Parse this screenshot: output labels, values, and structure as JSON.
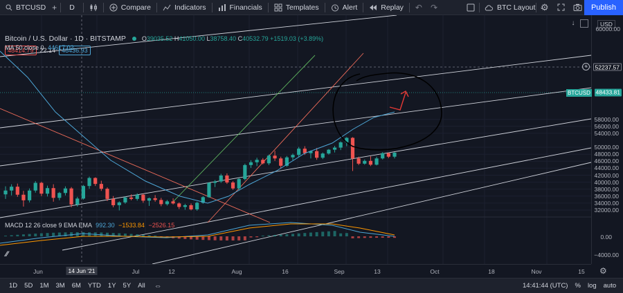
{
  "toolbar": {
    "symbol": "BTCUSD",
    "interval": "D",
    "compare": "Compare",
    "indicators": "Indicators",
    "financials": "Financials",
    "templates": "Templates",
    "alert": "Alert",
    "replay": "Replay",
    "layout_name": "BTC Layout",
    "publish": "Publish"
  },
  "legend": {
    "title": "Bitcoin / U.S. Dollar · 1D · BITSTAMP",
    "open_label": "O",
    "open": "39035.52",
    "high_label": "H",
    "high": "41050.00",
    "low_label": "L",
    "low": "38758.40",
    "close_label": "C",
    "close": "40532.79",
    "change": "+1519.03 (+3.89%)",
    "bid": "48414.79",
    "spread": "22.14",
    "ask": "48436.93",
    "ma_text": "MA 50 close 0",
    "ma_value": "44617.02"
  },
  "macd": {
    "label": "MACD 12 26 close 9 EMA EMA",
    "v1": "992.30",
    "v2": "−1533.84",
    "v3": "−2526.15"
  },
  "price_axis": {
    "currency": "USD",
    "ticks": [
      "58000.00",
      "56000.00",
      "54000.00",
      "50000.00",
      "48000.00",
      "46000.00",
      "44000.00",
      "42000.00",
      "40000.00",
      "38000.00",
      "36000.00",
      "34000.00",
      "32000.00"
    ],
    "tick_values": [
      58000,
      56000,
      54000,
      50000,
      48000,
      46000,
      44000,
      42000,
      40000,
      38000,
      36000,
      34000,
      32000
    ],
    "top_tick": "60000.00",
    "crosshair_price": "52237.57",
    "symbol_tag": "BTCUSD",
    "last_price": "48433.81",
    "macd_ticks": [
      "0.00",
      "−4000.00"
    ]
  },
  "time_axis": {
    "labels": [
      "Jun",
      "14 Jun '21",
      "Jul",
      "12",
      "Aug",
      "16",
      "Sep",
      "13",
      "Oct",
      "18",
      "Nov",
      "15"
    ]
  },
  "range_buttons": [
    "1D",
    "5D",
    "1M",
    "3M",
    "6M",
    "YTD",
    "1Y",
    "5Y",
    "All"
  ],
  "status": {
    "clock": "14:41:44 (UTC)",
    "pct": "%",
    "log": "log",
    "auto": "auto"
  },
  "colors": {
    "up": "#26a69a",
    "down": "#ef5350",
    "ma": "#4da6d6",
    "accent": "#2962ff"
  },
  "chart_data": {
    "type": "candlestick",
    "title": "Bitcoin / U.S. Dollar · 1D · BITSTAMP",
    "ylim": [
      31000,
      61000
    ],
    "candles": [
      [
        36500,
        38800,
        35200,
        37600
      ],
      [
        37600,
        39400,
        36200,
        38700
      ],
      [
        38700,
        39600,
        35800,
        36400
      ],
      [
        36400,
        37500,
        33000,
        34800
      ],
      [
        34800,
        38200,
        34200,
        37600
      ],
      [
        37600,
        40300,
        37000,
        39800
      ],
      [
        39800,
        40100,
        36000,
        36700
      ],
      [
        36700,
        39000,
        35900,
        38300
      ],
      [
        38300,
        39400,
        34400,
        35500
      ],
      [
        35500,
        37200,
        34800,
        36900
      ],
      [
        36900,
        38800,
        36200,
        38200
      ],
      [
        38200,
        38600,
        32800,
        33600
      ],
      [
        33600,
        35800,
        33000,
        35300
      ],
      [
        35300,
        39200,
        35000,
        38900
      ],
      [
        38900,
        41600,
        38100,
        41200
      ],
      [
        41200,
        41400,
        38900,
        39500
      ],
      [
        39500,
        40400,
        37500,
        38100
      ],
      [
        38100,
        38500,
        34600,
        35200
      ],
      [
        35200,
        36000,
        32800,
        33400
      ],
      [
        33400,
        34500,
        31900,
        34200
      ],
      [
        34200,
        35900,
        33800,
        35600
      ],
      [
        35600,
        36500,
        34800,
        35200
      ],
      [
        35200,
        36800,
        34700,
        36400
      ],
      [
        36400,
        36700,
        34100,
        34700
      ],
      [
        34700,
        35600,
        33200,
        35400
      ],
      [
        35400,
        36300,
        34400,
        34900
      ],
      [
        34900,
        35500,
        33100,
        33700
      ],
      [
        33700,
        34900,
        33300,
        34500
      ],
      [
        34500,
        35400,
        33600,
        33900
      ],
      [
        33900,
        34200,
        32300,
        32900
      ],
      [
        32900,
        33800,
        32100,
        33400
      ],
      [
        33400,
        33900,
        31900,
        32200
      ],
      [
        32200,
        34400,
        31800,
        34100
      ],
      [
        34100,
        36000,
        33800,
        35700
      ],
      [
        35700,
        40000,
        35500,
        39800
      ],
      [
        39800,
        40600,
        38600,
        40200
      ],
      [
        40200,
        42400,
        39800,
        41900
      ],
      [
        41900,
        42500,
        39500,
        39900
      ],
      [
        39900,
        40300,
        37800,
        38200
      ],
      [
        38200,
        41200,
        37600,
        40900
      ],
      [
        40900,
        45300,
        40500,
        44900
      ],
      [
        44900,
        46300,
        44100,
        45700
      ],
      [
        45700,
        47000,
        44600,
        46400
      ],
      [
        46400,
        46900,
        45100,
        45400
      ],
      [
        45400,
        47900,
        44900,
        47600
      ],
      [
        47600,
        49000,
        46100,
        46800
      ],
      [
        46800,
        47300,
        43900,
        44700
      ],
      [
        44700,
        47500,
        44400,
        47100
      ],
      [
        47100,
        48200,
        46300,
        47800
      ],
      [
        47800,
        50100,
        47100,
        49600
      ],
      [
        49600,
        50300,
        47800,
        48300
      ],
      [
        48300,
        49100,
        46800,
        48900
      ],
      [
        48900,
        49800,
        46400,
        47000
      ],
      [
        47000,
        48500,
        46600,
        48200
      ],
      [
        48200,
        49500,
        47900,
        49300
      ],
      [
        49300,
        50400,
        48500,
        49900
      ],
      [
        49900,
        51700,
        49200,
        51400
      ],
      [
        51400,
        52900,
        50300,
        52700
      ],
      [
        52700,
        52900,
        43200,
        46800
      ],
      [
        46800,
        47300,
        44900,
        45300
      ],
      [
        45300,
        46500,
        45000,
        46100
      ],
      [
        46100,
        47400,
        44600,
        45000
      ],
      [
        45000,
        47300,
        44800,
        46800
      ],
      [
        46800,
        48600,
        46500,
        48300
      ],
      [
        48300,
        48500,
        46900,
        47300
      ],
      [
        47300,
        48600,
        46800,
        48433
      ]
    ]
  }
}
